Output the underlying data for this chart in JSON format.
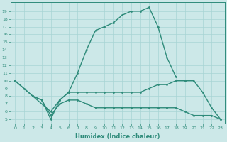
{
  "xlabel": "Humidex (Indice chaleur)",
  "line_color": "#2e8b7a",
  "bg_color": "#cce8e8",
  "grid_color": "#a8d4d4",
  "ylim": [
    4.5,
    20.2
  ],
  "xlim": [
    -0.5,
    23.5
  ],
  "yticks": [
    5,
    6,
    7,
    8,
    9,
    10,
    11,
    12,
    13,
    14,
    15,
    16,
    17,
    18,
    19
  ],
  "xticks": [
    0,
    1,
    2,
    3,
    4,
    5,
    6,
    7,
    8,
    9,
    10,
    11,
    12,
    13,
    14,
    15,
    16,
    17,
    18,
    19,
    20,
    21,
    22,
    23
  ],
  "line1_x": [
    0,
    1,
    2,
    3,
    4,
    5,
    6,
    7,
    8,
    9,
    10,
    11,
    12,
    13,
    14,
    15,
    16,
    17,
    18
  ],
  "line1_y": [
    10,
    9,
    8,
    7.5,
    5,
    7.5,
    8.5,
    11,
    14,
    16.5,
    17,
    17.5,
    18.5,
    19,
    19,
    19.5,
    17,
    13,
    10.5
  ],
  "line2_x": [
    0,
    2,
    4,
    5,
    6,
    7,
    8,
    9,
    10,
    11,
    12,
    13,
    14,
    15,
    16,
    17,
    18,
    19,
    20,
    21,
    22,
    23
  ],
  "line2_y": [
    10,
    8,
    6,
    7.5,
    8.5,
    8.5,
    8.5,
    8.5,
    8.5,
    8.5,
    8.5,
    8.5,
    8.5,
    9,
    9.5,
    9.5,
    10,
    10,
    10,
    8.5,
    6.5,
    5
  ],
  "line3_x": [
    2,
    3,
    4,
    5,
    6,
    7,
    8,
    9,
    10,
    11,
    12,
    13,
    14,
    15,
    16,
    17,
    18,
    19,
    20,
    21,
    22,
    23
  ],
  "line3_y": [
    8,
    7.5,
    5.5,
    7,
    7.5,
    7.5,
    7,
    6.5,
    6.5,
    6.5,
    6.5,
    6.5,
    6.5,
    6.5,
    6.5,
    6.5,
    6.5,
    6,
    5.5,
    5.5,
    5.5,
    5
  ]
}
